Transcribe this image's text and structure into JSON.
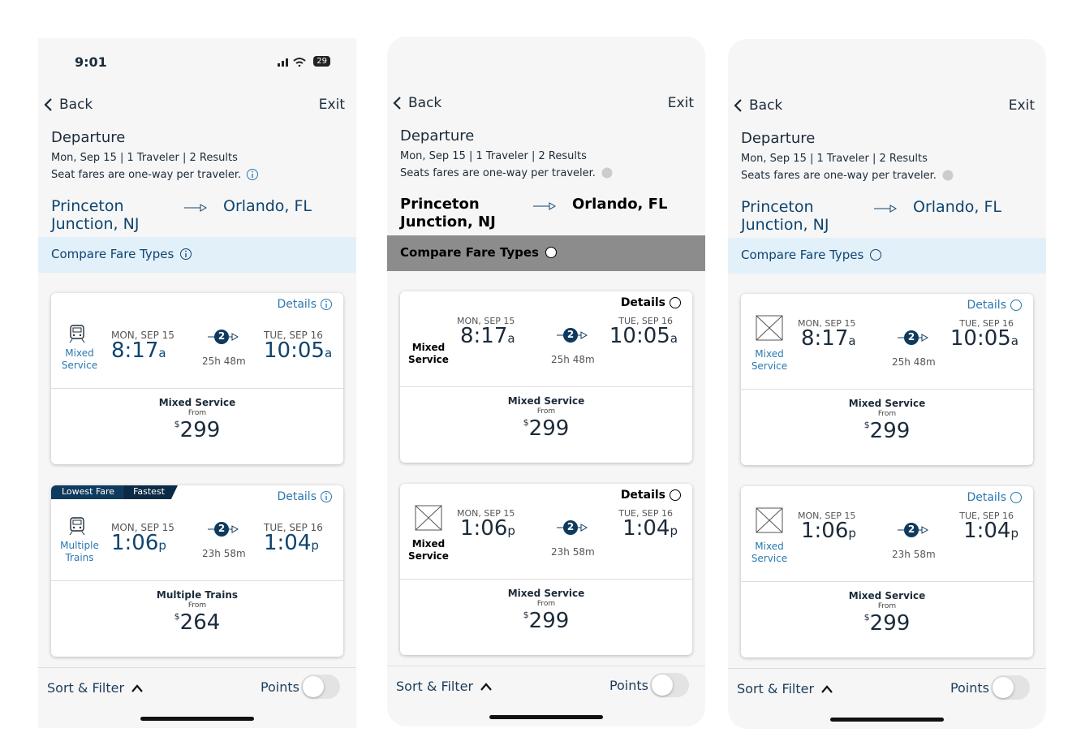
{
  "screens": [
    {
      "status": {
        "time": "9:01",
        "battery": "29"
      },
      "back": "Back",
      "exit": "Exit",
      "title": "Departure",
      "summary": "Mon, Sep 15 | 1 Traveler | 2 Results",
      "note": "Seat fares are one-way per traveler.",
      "origin": "Princeton Junction, NJ",
      "destination": "Orlando, FL",
      "compare": "Compare Fare Types",
      "cards": [
        {
          "details": "Details",
          "service": "Mixed Service",
          "depart_date": "MON, SEP 15",
          "depart_time": "8:17",
          "depart_suffix": "a",
          "stops": "2",
          "duration": "25h 48m",
          "arrive_date": "TUE, SEP 16",
          "arrive_time": "10:05",
          "arrive_suffix": "a",
          "fare_name": "Mixed Service",
          "from": "From",
          "currency": "$",
          "price": "299"
        },
        {
          "badges": [
            "Lowest Fare",
            "Fastest"
          ],
          "details": "Details",
          "service": "Multiple Trains",
          "depart_date": "MON, SEP 15",
          "depart_time": "1:06",
          "depart_suffix": "p",
          "stops": "2",
          "duration": "23h 58m",
          "arrive_date": "TUE, SEP 16",
          "arrive_time": "1:04",
          "arrive_suffix": "p",
          "fare_name": "Multiple Trains",
          "from": "From",
          "currency": "$",
          "price": "264"
        }
      ],
      "footer": {
        "sort": "Sort & Filter",
        "points": "Points"
      }
    },
    {
      "back": "Back",
      "exit": "Exit",
      "title": "Departure",
      "summary": "Mon, Sep 15 | 1 Traveler | 2 Results",
      "note": "Seats fares are one-way per traveler.",
      "origin": "Princeton Junction, NJ",
      "destination": "Orlando, FL",
      "compare": "Compare Fare Types",
      "cards": [
        {
          "details": "Details",
          "service": "Mixed Service",
          "depart_date": "MON, SEP 15",
          "depart_time": "8:17",
          "depart_suffix": "a",
          "stops": "2",
          "duration": "25h 48m",
          "arrive_date": "TUE, SEP 16",
          "arrive_time": "10:05",
          "arrive_suffix": "a",
          "fare_name": "Mixed Service",
          "from": "From",
          "currency": "$",
          "price": "299"
        },
        {
          "details": "Details",
          "service": "Mixed Service",
          "depart_date": "MON, SEP 15",
          "depart_time": "1:06",
          "depart_suffix": "p",
          "stops": "2",
          "duration": "23h 58m",
          "arrive_date": "TUE, SEP 16",
          "arrive_time": "1:04",
          "arrive_suffix": "p",
          "fare_name": "Mixed Service",
          "from": "From",
          "currency": "$",
          "price": "299"
        }
      ],
      "footer": {
        "sort": "Sort & Filter",
        "points": "Points"
      }
    },
    {
      "back": "Back",
      "exit": "Exit",
      "title": "Departure",
      "summary": "Mon, Sep 15 | 1 Traveler | 2 Results",
      "note": "Seats fares are one-way per traveler.",
      "origin": "Princeton Junction, NJ",
      "destination": "Orlando, FL",
      "compare": "Compare Fare Types",
      "cards": [
        {
          "details": "Details",
          "service": "Mixed Service",
          "depart_date": "MON, SEP 15",
          "depart_time": "8:17",
          "depart_suffix": "a",
          "stops": "2",
          "duration": "25h 48m",
          "arrive_date": "TUE, SEP 16",
          "arrive_time": "10:05",
          "arrive_suffix": "a",
          "fare_name": "Mixed Service",
          "from": "From",
          "currency": "$",
          "price": "299"
        },
        {
          "details": "Details",
          "service": "Mixed Service",
          "depart_date": "MON, SEP 15",
          "depart_time": "1:06",
          "depart_suffix": "p",
          "stops": "2",
          "duration": "23h 58m",
          "arrive_date": "TUE, SEP 16",
          "arrive_time": "1:04",
          "arrive_suffix": "p",
          "fare_name": "Mixed Service",
          "from": "From",
          "currency": "$",
          "price": "299"
        }
      ],
      "footer": {
        "sort": "Sort & Filter",
        "points": "Points"
      }
    }
  ]
}
